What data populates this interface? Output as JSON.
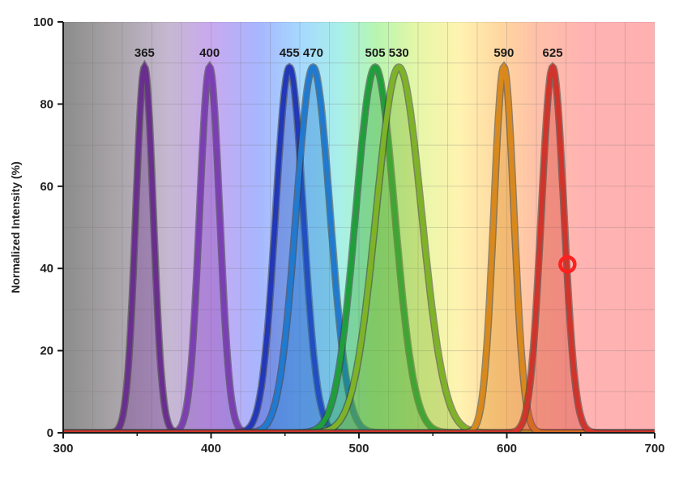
{
  "chart_data": {
    "type": "area",
    "title": "",
    "xlabel": "",
    "ylabel": "Normalized Intensity (%)",
    "xlim": [
      300,
      700
    ],
    "ylim": [
      0,
      100
    ],
    "x_ticks": [
      "300",
      "400",
      "500",
      "600",
      "700"
    ],
    "y_ticks": [
      "0",
      "20",
      "40",
      "60",
      "80",
      "100"
    ],
    "grid": true,
    "background": "visible spectrum gradient",
    "series": [
      {
        "name": "365",
        "peak_x": 355,
        "peak_y": 89,
        "fwhm": 14,
        "color": "#6a2f8e"
      },
      {
        "name": "400",
        "peak_x": 399,
        "peak_y": 89,
        "fwhm": 16,
        "color": "#7b3fb3"
      },
      {
        "name": "455",
        "peak_x": 453,
        "peak_y": 89,
        "fwhm": 22,
        "color": "#2238b8"
      },
      {
        "name": "470",
        "peak_x": 469,
        "peak_y": 89,
        "fwhm": 27,
        "color": "#1f7ad0"
      },
      {
        "name": "505",
        "peak_x": 511,
        "peak_y": 89,
        "fwhm": 31,
        "color": "#1f9e3a"
      },
      {
        "name": "530",
        "peak_x": 527,
        "peak_y": 89,
        "fwhm": 36,
        "color": "#7fb327"
      },
      {
        "name": "590",
        "peak_x": 598,
        "peak_y": 89,
        "fwhm": 16,
        "color": "#d9891c"
      },
      {
        "name": "625",
        "peak_x": 631,
        "peak_y": 89,
        "fwhm": 18,
        "color": "#d0342a"
      }
    ],
    "marker": {
      "x": 641,
      "y": 41,
      "color": "#ff2020"
    }
  }
}
